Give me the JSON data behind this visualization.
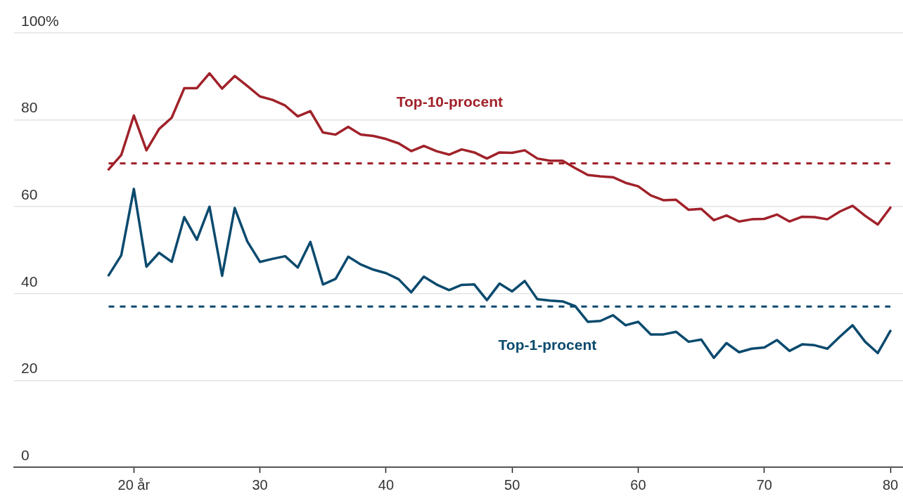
{
  "chart_data": {
    "type": "line",
    "x": [
      18,
      19,
      20,
      21,
      22,
      23,
      24,
      25,
      26,
      27,
      28,
      29,
      30,
      31,
      32,
      33,
      34,
      35,
      36,
      37,
      38,
      39,
      40,
      41,
      42,
      43,
      44,
      45,
      46,
      47,
      48,
      49,
      50,
      51,
      52,
      53,
      54,
      55,
      56,
      57,
      58,
      59,
      60,
      61,
      62,
      63,
      64,
      65,
      66,
      67,
      68,
      69,
      70,
      71,
      72,
      73,
      74,
      75,
      76,
      77,
      78,
      79,
      80
    ],
    "series": [
      {
        "name": "Top-10-procent",
        "color": "#a0222a",
        "values": [
          68.6,
          71.9,
          81.0,
          73.0,
          77.9,
          80.5,
          87.3,
          87.3,
          90.7,
          87.2,
          90.1,
          87.8,
          85.4,
          84.6,
          83.3,
          80.8,
          82.0,
          77.1,
          76.6,
          78.4,
          76.6,
          76.3,
          75.6,
          74.6,
          72.8,
          74.0,
          72.8,
          72.0,
          73.2,
          72.5,
          71.1,
          72.5,
          72.4,
          73.0,
          71.1,
          70.6,
          70.6,
          68.9,
          67.3,
          67.0,
          66.8,
          65.5,
          64.7,
          62.6,
          61.5,
          61.6,
          59.3,
          59.5,
          56.9,
          58.0,
          56.6,
          57.1,
          57.2,
          58.2,
          56.6,
          57.7,
          57.6,
          57.1,
          58.9,
          60.2,
          57.9,
          55.9,
          59.8
        ]
      },
      {
        "name": "Top-1-procent",
        "color": "#0b4a6e",
        "values": [
          44.2,
          48.8,
          64.1,
          46.2,
          49.4,
          47.3,
          57.6,
          52.4,
          60.0,
          44.1,
          59.7,
          52.0,
          47.3,
          48.0,
          48.6,
          46.0,
          51.9,
          42.1,
          43.4,
          48.5,
          46.7,
          45.5,
          44.7,
          43.3,
          40.3,
          43.9,
          42.1,
          40.8,
          42.0,
          42.1,
          38.5,
          42.3,
          40.5,
          42.9,
          38.7,
          38.4,
          38.2,
          37.1,
          33.5,
          33.7,
          35.0,
          32.7,
          33.5,
          30.6,
          30.6,
          31.2,
          28.9,
          29.4,
          25.2,
          28.6,
          26.5,
          27.3,
          27.6,
          29.3,
          26.8,
          28.3,
          28.1,
          27.3,
          30.1,
          32.7,
          28.9,
          26.3,
          31.4
        ]
      }
    ],
    "ref_lines": [
      {
        "axis": "y",
        "value": 70,
        "color": "#a0222a",
        "line_style": "dashed"
      },
      {
        "axis": "y",
        "value": 37,
        "color": "#0b4a6e",
        "line_style": "dashed"
      }
    ],
    "xlim": [
      10.5,
      81
    ],
    "xticks": [
      {
        "value": 20,
        "label": "20 år"
      },
      30,
      40,
      50,
      60,
      70,
      80
    ],
    "ylim": [
      0,
      100
    ],
    "yticks": [
      0,
      20,
      40,
      60,
      80,
      {
        "value": 100,
        "label": "100%"
      }
    ],
    "grid": "y",
    "legend": false,
    "marker": "none",
    "line_style": "solid"
  }
}
